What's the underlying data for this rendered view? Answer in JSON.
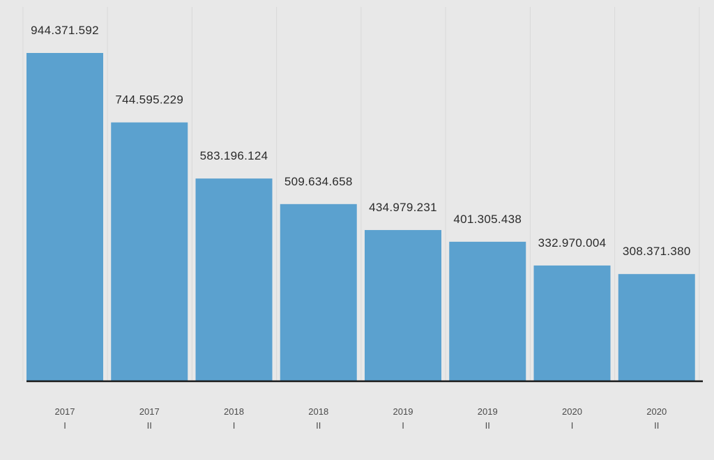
{
  "chart_data": {
    "type": "bar",
    "categories": [
      {
        "year": "2017",
        "half": "I"
      },
      {
        "year": "2017",
        "half": "II"
      },
      {
        "year": "2018",
        "half": "I"
      },
      {
        "year": "2018",
        "half": "II"
      },
      {
        "year": "2019",
        "half": "I"
      },
      {
        "year": "2019",
        "half": "II"
      },
      {
        "year": "2020",
        "half": "I"
      },
      {
        "year": "2020",
        "half": "II"
      }
    ],
    "values": [
      944371592,
      744595229,
      583196124,
      509634658,
      434979231,
      401305438,
      332970004,
      308371380
    ],
    "value_labels": [
      "944.371.592",
      "744.595.229",
      "583.196.124",
      "509.634.658",
      "434.979.231",
      "401.305.438",
      "332.970.004",
      "308.371.380"
    ],
    "ylim": [
      0,
      944371592
    ],
    "grid": true,
    "legend": "none",
    "colors": {
      "bar": "#5ba1cf",
      "background": "#e8e8e8",
      "grid": "#d9d9d9",
      "baseline": "#1a1a1a"
    }
  }
}
